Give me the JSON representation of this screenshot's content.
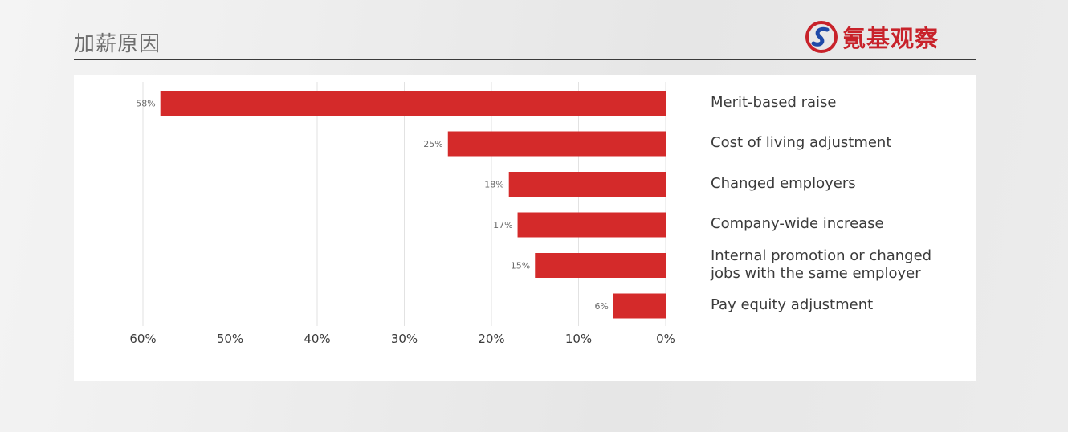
{
  "header": {
    "title": "加薪原因",
    "logo_text": "氪基观察"
  },
  "colors": {
    "bar": "#d42a2a",
    "grid": "#e2e2e2",
    "brand_red": "#c8222a",
    "brand_blue": "#1f4aa8"
  },
  "chart_data": {
    "type": "bar",
    "orientation": "horizontal",
    "direction": "right-to-left",
    "categories": [
      "Merit-based raise",
      "Cost of living adjustment",
      "Changed employers",
      "Company-wide increase",
      "Internal promotion or changed\njobs with the same employer",
      "Pay equity adjustment"
    ],
    "values": [
      58,
      25,
      18,
      17,
      15,
      6
    ],
    "value_labels": [
      "58%",
      "25%",
      "18%",
      "17%",
      "15%",
      "6%"
    ],
    "xlim": [
      0,
      60
    ],
    "x_ticks": [
      60,
      50,
      40,
      30,
      20,
      10,
      0
    ],
    "x_tick_labels": [
      "60%",
      "50%",
      "40%",
      "30%",
      "20%",
      "10%",
      "0%"
    ],
    "grid": true,
    "title": "",
    "xlabel": "",
    "ylabel": ""
  }
}
